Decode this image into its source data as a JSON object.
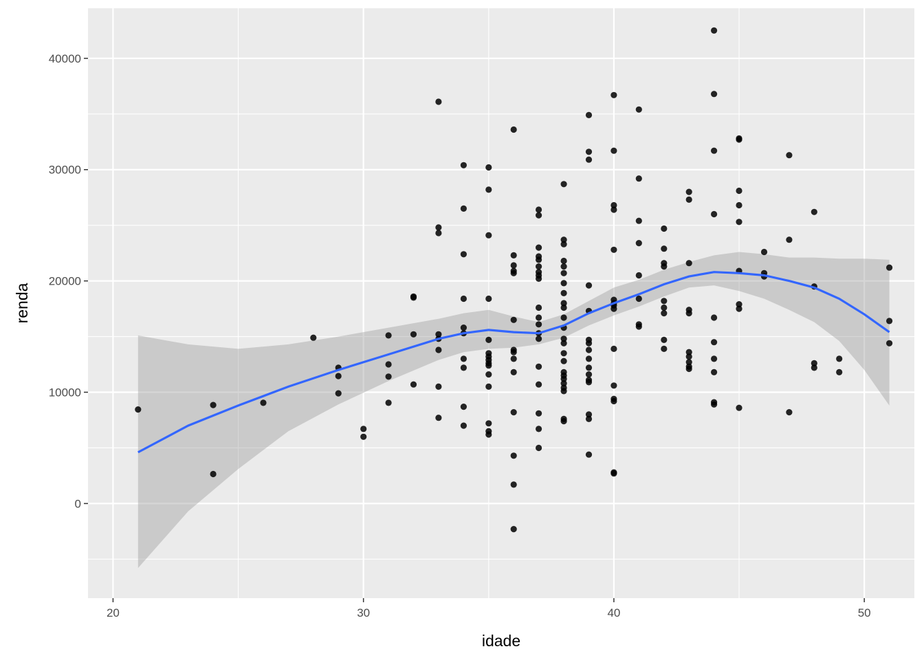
{
  "chart_data": {
    "type": "scatter",
    "title": "",
    "xlabel": "idade",
    "ylabel": "renda",
    "xlim": [
      19,
      52
    ],
    "ylim": [
      -8500,
      44500
    ],
    "x_ticks": [
      20,
      30,
      40,
      50
    ],
    "x_tick_labels": [
      "20",
      "30",
      "40",
      "50"
    ],
    "y_ticks": [
      0,
      10000,
      20000,
      30000,
      40000
    ],
    "y_tick_labels": [
      "0",
      "10000",
      "20000",
      "30000",
      "40000"
    ],
    "grid": true,
    "legend": "none",
    "colors": {
      "panel": "#ebebeb",
      "grid_major": "#ffffff",
      "point": "#000000",
      "smooth_line": "#3366ff",
      "confidence_band": "#999999"
    },
    "points": [
      [
        21,
        8450
      ],
      [
        24,
        8850
      ],
      [
        24,
        2650
      ],
      [
        26,
        9050
      ],
      [
        28,
        14900
      ],
      [
        29,
        12200
      ],
      [
        29,
        11450
      ],
      [
        29,
        9900
      ],
      [
        30,
        6700
      ],
      [
        30,
        6000
      ],
      [
        31,
        15100
      ],
      [
        31,
        12500
      ],
      [
        31,
        11400
      ],
      [
        31,
        9050
      ],
      [
        32,
        18600
      ],
      [
        32,
        18500
      ],
      [
        32,
        15200
      ],
      [
        32,
        10700
      ],
      [
        33,
        36100
      ],
      [
        33,
        24800
      ],
      [
        33,
        24300
      ],
      [
        33,
        15200
      ],
      [
        33,
        14800
      ],
      [
        33,
        13800
      ],
      [
        33,
        10500
      ],
      [
        33,
        7700
      ],
      [
        34,
        30400
      ],
      [
        34,
        26500
      ],
      [
        34,
        22400
      ],
      [
        34,
        18400
      ],
      [
        34,
        15800
      ],
      [
        34,
        15300
      ],
      [
        34,
        13000
      ],
      [
        34,
        12200
      ],
      [
        34,
        8700
      ],
      [
        34,
        7000
      ],
      [
        35,
        30200
      ],
      [
        35,
        28200
      ],
      [
        35,
        24100
      ],
      [
        35,
        18400
      ],
      [
        35,
        14700
      ],
      [
        35,
        13500
      ],
      [
        35,
        13200
      ],
      [
        35,
        12900
      ],
      [
        35,
        12600
      ],
      [
        35,
        12400
      ],
      [
        35,
        11600
      ],
      [
        35,
        10500
      ],
      [
        35,
        7200
      ],
      [
        35,
        6500
      ],
      [
        35,
        6200
      ],
      [
        36,
        33600
      ],
      [
        36,
        22300
      ],
      [
        36,
        21400
      ],
      [
        36,
        20900
      ],
      [
        36,
        20700
      ],
      [
        36,
        16500
      ],
      [
        36,
        13800
      ],
      [
        36,
        13600
      ],
      [
        36,
        13000
      ],
      [
        36,
        11800
      ],
      [
        36,
        8200
      ],
      [
        36,
        4300
      ],
      [
        36,
        1700
      ],
      [
        36,
        -2300
      ],
      [
        37,
        26400
      ],
      [
        37,
        25900
      ],
      [
        37,
        23000
      ],
      [
        37,
        22200
      ],
      [
        37,
        21900
      ],
      [
        37,
        21300
      ],
      [
        37,
        20800
      ],
      [
        37,
        20500
      ],
      [
        37,
        20200
      ],
      [
        37,
        17600
      ],
      [
        37,
        16700
      ],
      [
        37,
        16100
      ],
      [
        37,
        15300
      ],
      [
        37,
        14800
      ],
      [
        37,
        12300
      ],
      [
        37,
        10700
      ],
      [
        37,
        8100
      ],
      [
        37,
        6700
      ],
      [
        37,
        5000
      ],
      [
        38,
        28700
      ],
      [
        38,
        23700
      ],
      [
        38,
        23300
      ],
      [
        38,
        21800
      ],
      [
        38,
        21300
      ],
      [
        38,
        20700
      ],
      [
        38,
        19800
      ],
      [
        38,
        18900
      ],
      [
        38,
        18000
      ],
      [
        38,
        17600
      ],
      [
        38,
        16700
      ],
      [
        38,
        15800
      ],
      [
        38,
        14800
      ],
      [
        38,
        14400
      ],
      [
        38,
        13500
      ],
      [
        38,
        12800
      ],
      [
        38,
        11800
      ],
      [
        38,
        11500
      ],
      [
        38,
        11200
      ],
      [
        38,
        10800
      ],
      [
        38,
        10400
      ],
      [
        38,
        10100
      ],
      [
        38,
        7600
      ],
      [
        38,
        7400
      ],
      [
        39,
        34900
      ],
      [
        39,
        31600
      ],
      [
        39,
        30900
      ],
      [
        39,
        19600
      ],
      [
        39,
        17300
      ],
      [
        39,
        14700
      ],
      [
        39,
        14400
      ],
      [
        39,
        13800
      ],
      [
        39,
        13000
      ],
      [
        39,
        12200
      ],
      [
        39,
        11600
      ],
      [
        39,
        11100
      ],
      [
        39,
        10900
      ],
      [
        39,
        8000
      ],
      [
        39,
        7600
      ],
      [
        39,
        4400
      ],
      [
        40,
        36700
      ],
      [
        40,
        31700
      ],
      [
        40,
        26800
      ],
      [
        40,
        26400
      ],
      [
        40,
        22800
      ],
      [
        40,
        18300
      ],
      [
        40,
        18000
      ],
      [
        40,
        17800
      ],
      [
        40,
        17500
      ],
      [
        40,
        13900
      ],
      [
        40,
        10600
      ],
      [
        40,
        9400
      ],
      [
        40,
        9200
      ],
      [
        40,
        2800
      ],
      [
        40,
        2700
      ],
      [
        41,
        35400
      ],
      [
        41,
        29200
      ],
      [
        41,
        25400
      ],
      [
        41,
        23400
      ],
      [
        41,
        20500
      ],
      [
        41,
        18400
      ],
      [
        41,
        16100
      ],
      [
        41,
        15900
      ],
      [
        42,
        24700
      ],
      [
        42,
        22900
      ],
      [
        42,
        21600
      ],
      [
        42,
        21300
      ],
      [
        42,
        18200
      ],
      [
        42,
        17600
      ],
      [
        42,
        17100
      ],
      [
        42,
        14700
      ],
      [
        42,
        13900
      ],
      [
        43,
        28000
      ],
      [
        43,
        27300
      ],
      [
        43,
        21600
      ],
      [
        43,
        17400
      ],
      [
        43,
        17100
      ],
      [
        43,
        13600
      ],
      [
        43,
        13200
      ],
      [
        43,
        12700
      ],
      [
        43,
        12300
      ],
      [
        43,
        12100
      ],
      [
        44,
        42500
      ],
      [
        44,
        36800
      ],
      [
        44,
        31700
      ],
      [
        44,
        26000
      ],
      [
        44,
        16700
      ],
      [
        44,
        14500
      ],
      [
        44,
        13000
      ],
      [
        44,
        11800
      ],
      [
        44,
        9100
      ],
      [
        44,
        8900
      ],
      [
        45,
        32800
      ],
      [
        45,
        32700
      ],
      [
        45,
        28100
      ],
      [
        45,
        26800
      ],
      [
        45,
        25300
      ],
      [
        45,
        20900
      ],
      [
        45,
        17900
      ],
      [
        45,
        17500
      ],
      [
        45,
        8600
      ],
      [
        46,
        22600
      ],
      [
        46,
        20700
      ],
      [
        46,
        20400
      ],
      [
        47,
        31300
      ],
      [
        47,
        23700
      ],
      [
        47,
        8200
      ],
      [
        48,
        26200
      ],
      [
        48,
        19500
      ],
      [
        48,
        12600
      ],
      [
        48,
        12200
      ],
      [
        49,
        13000
      ],
      [
        49,
        11800
      ],
      [
        51,
        21200
      ],
      [
        51,
        16400
      ],
      [
        51,
        14400
      ]
    ],
    "smooth": {
      "method": "loess",
      "x": [
        21,
        23,
        25,
        27,
        29,
        31,
        33,
        34,
        35,
        36,
        37,
        38,
        39,
        40,
        41,
        42,
        43,
        44,
        45,
        46,
        47,
        48,
        49,
        50,
        51
      ],
      "y": [
        4600,
        7000,
        8800,
        10500,
        12000,
        13400,
        14800,
        15300,
        15600,
        15400,
        15300,
        16000,
        17100,
        18000,
        18800,
        19700,
        20400,
        20800,
        20700,
        20500,
        20000,
        19400,
        18400,
        17000,
        15400
      ],
      "lower": [
        -5800,
        -700,
        3100,
        6500,
        8900,
        11000,
        12900,
        13600,
        13900,
        14000,
        14300,
        14900,
        16000,
        16900,
        17700,
        18600,
        19400,
        19600,
        19100,
        18400,
        17400,
        16300,
        14600,
        12000,
        8800
      ],
      "upper": [
        15100,
        14300,
        13900,
        14300,
        15000,
        15800,
        16600,
        17100,
        17400,
        16800,
        16300,
        17000,
        18200,
        19400,
        20100,
        21000,
        21700,
        22300,
        22600,
        22400,
        22100,
        22100,
        22000,
        22000,
        21900
      ]
    }
  }
}
